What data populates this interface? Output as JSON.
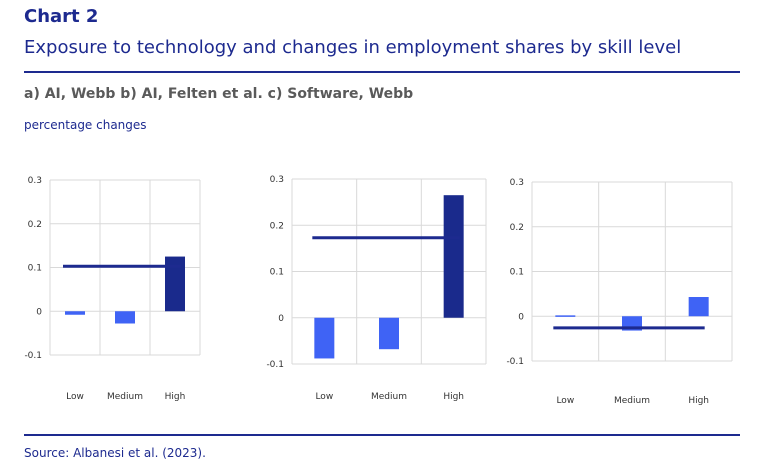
{
  "header": {
    "chart_label": "Chart 2",
    "title": "Exposure to technology and changes in employment shares by skill level",
    "subtitle": "a) AI, Webb b) AI, Felten et al. c) Software, Webb",
    "units": "percentage changes"
  },
  "footer": {
    "source": "Source: Albanesi et al. (2023)."
  },
  "colors": {
    "bar_light": "#3f63f5",
    "bar_dark": "#1a2a8c",
    "line": "#1d2a8f",
    "grid": "#d9d9d9"
  },
  "chart_data": [
    {
      "type": "bar",
      "panel": "a",
      "categories": [
        "Low",
        "Medium",
        "High"
      ],
      "values": [
        -0.008,
        -0.028,
        0.125
      ],
      "overall_change": 0.103,
      "ylim": [
        -0.1,
        0.3
      ],
      "yticks": [
        "0.3",
        "0.2",
        "0.1",
        "0",
        "-0.1"
      ],
      "grid": true
    },
    {
      "type": "bar",
      "panel": "b",
      "categories": [
        "Low",
        "Medium",
        "High"
      ],
      "values": [
        -0.088,
        -0.068,
        0.265
      ],
      "overall_change": 0.173,
      "ylim": [
        -0.1,
        0.3
      ],
      "yticks": [
        "0.3",
        "0.2",
        "0.1",
        "0",
        "-0.1"
      ],
      "grid": true
    },
    {
      "type": "bar",
      "panel": "c",
      "categories": [
        "Low",
        "Medium",
        "High"
      ],
      "values": [
        0.002,
        -0.032,
        0.043
      ],
      "overall_change": -0.026,
      "ylim": [
        -0.1,
        0.3
      ],
      "yticks": [
        "0.3",
        "0.2",
        "0.1",
        "0",
        "-0.1"
      ],
      "grid": true
    }
  ]
}
